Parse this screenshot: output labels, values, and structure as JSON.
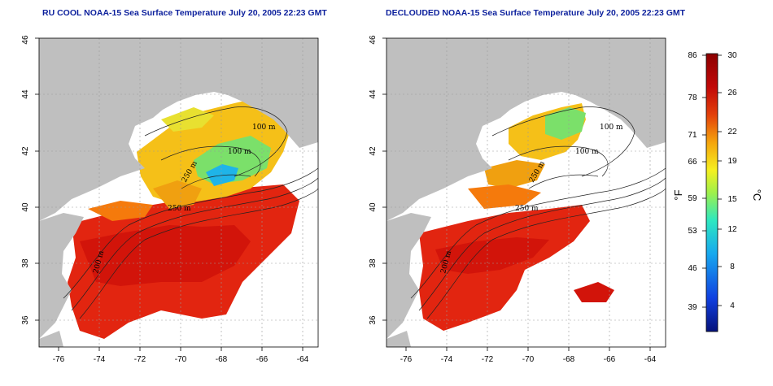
{
  "panels": [
    {
      "id": "left",
      "title": "RU COOL NOAA-15 Sea Surface Temperature July 20, 2005 22:23 GMT",
      "contour_labels": [
        "100 m",
        "100 m",
        "250 m",
        "250 m",
        "200 m"
      ]
    },
    {
      "id": "right",
      "title": "DECLOUDED NOAA-15 Sea Surface Temperature July 20, 2005 22:23 GMT",
      "contour_labels": [
        "100 m",
        "100 m",
        "250 m",
        "250 m",
        "200 m"
      ]
    }
  ],
  "axes": {
    "lon_ticks": [
      "-76",
      "-74",
      "-72",
      "-70",
      "-68",
      "-66",
      "-64"
    ],
    "lat_ticks": [
      "36",
      "38",
      "40",
      "42",
      "44",
      "46"
    ]
  },
  "colorbar": {
    "celsius_ticks": [
      "30",
      "26",
      "22",
      "19",
      "15",
      "12",
      "8",
      "4"
    ],
    "fahrenheit_ticks": [
      "86",
      "78",
      "71",
      "66",
      "59",
      "53",
      "46",
      "39"
    ],
    "unit_f": "°F",
    "unit_c": "°C",
    "colors": [
      "#06127a",
      "#1040e0",
      "#17a8ef",
      "#2ee8c0",
      "#9ff04a",
      "#f5f020",
      "#f5a50d",
      "#e3400a",
      "#c10808",
      "#8c0000"
    ]
  },
  "colors": {
    "land": "#bfbfbf",
    "title": "#0b1f9c",
    "contour": "#222222"
  }
}
